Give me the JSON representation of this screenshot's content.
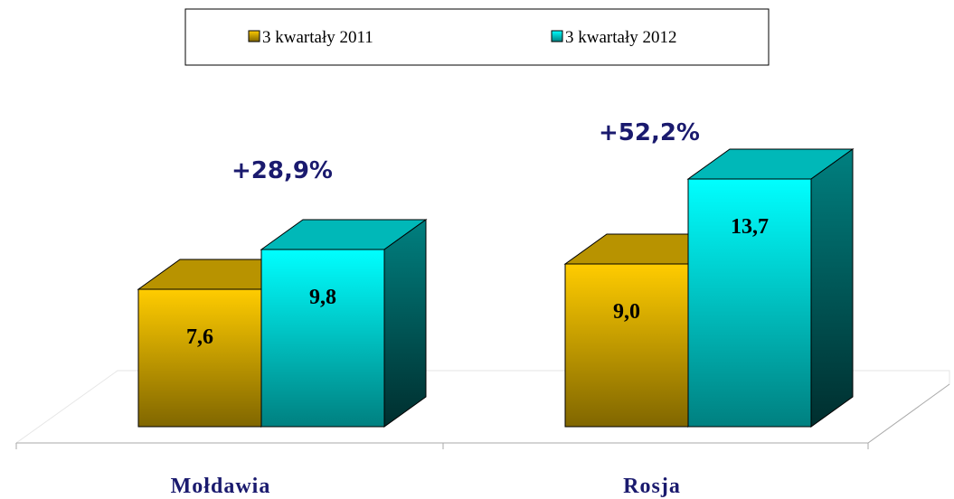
{
  "chart_data": {
    "type": "bar3d",
    "categories": [
      "Mołdawia",
      "Rosja"
    ],
    "series": [
      {
        "name": "3 kwartały 2011",
        "color": "#ffcc00",
        "values": [
          7.6,
          9.0
        ],
        "value_labels": [
          "7,6",
          "9,0"
        ]
      },
      {
        "name": "3 kwartały 2012",
        "color": "#00ffff",
        "values": [
          9.8,
          13.7
        ],
        "value_labels": [
          "9,8",
          "13,7"
        ]
      }
    ],
    "annotations": [
      "+28,9%",
      "+52,2%"
    ]
  }
}
